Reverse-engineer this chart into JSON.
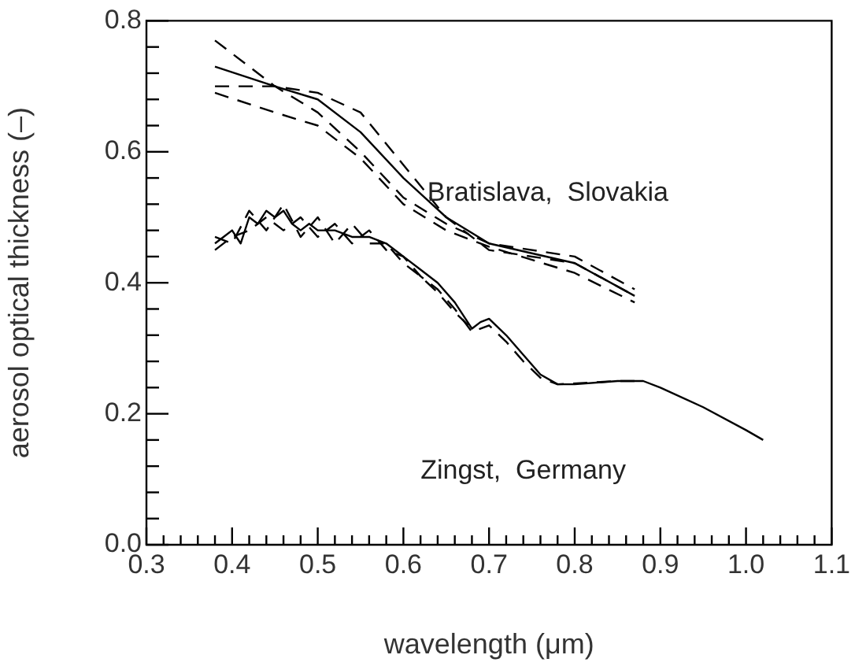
{
  "chart_data": {
    "type": "line",
    "xlabel": "wavelength (μm)",
    "ylabel": "aerosol optical thickness (–)",
    "xlim": [
      0.3,
      1.1
    ],
    "ylim": [
      0,
      0.8
    ],
    "xticks": [
      0.3,
      {
        "value": 0.32,
        "label": null
      },
      {
        "value": 0.34,
        "label": null
      },
      {
        "value": 0.36,
        "label": null
      },
      {
        "value": 0.38,
        "label": null
      },
      0.4,
      {
        "value": 0.42,
        "label": null
      },
      {
        "value": 0.44,
        "label": null
      },
      {
        "value": 0.46,
        "label": null
      },
      {
        "value": 0.48,
        "label": null
      },
      0.5,
      {
        "value": 0.52,
        "label": null
      },
      {
        "value": 0.54,
        "label": null
      },
      {
        "value": 0.56,
        "label": null
      },
      {
        "value": 0.58,
        "label": null
      },
      0.6,
      {
        "value": 0.62,
        "label": null
      },
      {
        "value": 0.64,
        "label": null
      },
      {
        "value": 0.66,
        "label": null
      },
      {
        "value": 0.68,
        "label": null
      },
      0.7,
      {
        "value": 0.72,
        "label": null
      },
      {
        "value": 0.74,
        "label": null
      },
      {
        "value": 0.76,
        "label": null
      },
      {
        "value": 0.78,
        "label": null
      },
      0.8,
      {
        "value": 0.82,
        "label": null
      },
      {
        "value": 0.84,
        "label": null
      },
      {
        "value": 0.86,
        "label": null
      },
      {
        "value": 0.88,
        "label": null
      },
      0.9,
      {
        "value": 0.92,
        "label": null
      },
      {
        "value": 0.94,
        "label": null
      },
      {
        "value": 0.96,
        "label": null
      },
      {
        "value": 0.98,
        "label": null
      },
      {
        "value": 1.0,
        "label": "1.0"
      },
      {
        "value": 1.02,
        "label": null
      },
      {
        "value": 1.04,
        "label": null
      },
      {
        "value": 1.06,
        "label": null
      },
      {
        "value": 1.08,
        "label": null
      },
      1.1
    ],
    "yticks": [
      {
        "value": 0,
        "label": "0.0"
      },
      {
        "value": 0.04,
        "label": null
      },
      {
        "value": 0.08,
        "label": null
      },
      {
        "value": 0.12,
        "label": null
      },
      {
        "value": 0.16,
        "label": null
      },
      0.2,
      {
        "value": 0.24,
        "label": null
      },
      {
        "value": 0.28,
        "label": null
      },
      {
        "value": 0.32,
        "label": null
      },
      {
        "value": 0.36,
        "label": null
      },
      0.4,
      {
        "value": 0.44,
        "label": null
      },
      {
        "value": 0.48,
        "label": null
      },
      {
        "value": 0.52,
        "label": null
      },
      {
        "value": 0.56,
        "label": null
      },
      0.6,
      {
        "value": 0.64,
        "label": null
      },
      {
        "value": 0.68,
        "label": null
      },
      {
        "value": 0.72,
        "label": null
      },
      {
        "value": 0.76,
        "label": null
      },
      0.8
    ],
    "grid": false,
    "legend": false,
    "marker": "none",
    "series": [
      {
        "color": "#000000",
        "line_style": "solid",
        "x": [
          0.38,
          0.45,
          0.5,
          0.55,
          0.6,
          0.65,
          0.7,
          0.8,
          0.87
        ],
        "values": [
          0.73,
          0.7,
          0.68,
          0.63,
          0.56,
          0.5,
          0.46,
          0.43,
          0.38
        ]
      },
      {
        "color": "#000000",
        "line_style": "dashed",
        "x": [
          0.38,
          0.45,
          0.5,
          0.55,
          0.6,
          0.65,
          0.7,
          0.8,
          0.87
        ],
        "values": [
          0.77,
          0.7,
          0.66,
          0.6,
          0.53,
          0.49,
          0.46,
          0.44,
          0.39
        ]
      },
      {
        "color": "#000000",
        "line_style": "dashed",
        "x": [
          0.38,
          0.45,
          0.5,
          0.55,
          0.6,
          0.65,
          0.7,
          0.8,
          0.87
        ],
        "values": [
          0.7,
          0.7,
          0.69,
          0.66,
          0.58,
          0.5,
          0.45,
          0.43,
          0.38
        ]
      },
      {
        "color": "#000000",
        "line_style": "dashed",
        "x": [
          0.38,
          0.45,
          0.5,
          0.55,
          0.6,
          0.65,
          0.7,
          0.8,
          0.87
        ],
        "values": [
          0.69,
          0.66,
          0.64,
          0.59,
          0.52,
          0.48,
          0.455,
          0.415,
          0.37
        ]
      },
      {
        "color": "#000000",
        "line_style": "solid",
        "x": [
          0.38,
          0.39,
          0.4,
          0.41,
          0.42,
          0.43,
          0.44,
          0.45,
          0.46,
          0.47,
          0.48,
          0.49,
          0.5,
          0.52,
          0.54,
          0.56,
          0.58,
          0.6,
          0.62,
          0.64,
          0.66,
          0.68,
          0.69,
          0.7,
          0.72,
          0.74,
          0.76,
          0.78,
          0.8,
          0.85,
          0.88,
          0.9,
          0.95,
          1.0,
          1.02
        ],
        "values": [
          0.46,
          0.47,
          0.48,
          0.46,
          0.5,
          0.49,
          0.51,
          0.5,
          0.51,
          0.49,
          0.48,
          0.49,
          0.48,
          0.48,
          0.47,
          0.47,
          0.46,
          0.44,
          0.42,
          0.4,
          0.37,
          0.33,
          0.34,
          0.345,
          0.32,
          0.29,
          0.26,
          0.245,
          0.245,
          0.25,
          0.25,
          0.24,
          0.21,
          0.175,
          0.16
        ]
      },
      {
        "color": "#000000",
        "line_style": "dashed",
        "x": [
          0.38,
          0.4,
          0.42,
          0.44,
          0.46,
          0.48,
          0.5,
          0.52,
          0.54,
          0.56,
          0.58,
          0.6,
          0.62,
          0.64,
          0.66,
          0.68,
          0.7,
          0.72,
          0.74,
          0.76,
          0.78,
          0.85,
          0.88
        ],
        "values": [
          0.45,
          0.47,
          0.48,
          0.5,
          0.48,
          0.5,
          0.47,
          0.49,
          0.46,
          0.48,
          0.45,
          0.44,
          0.41,
          0.39,
          0.36,
          0.325,
          0.335,
          0.31,
          0.28,
          0.255,
          0.245,
          0.25,
          0.25
        ]
      },
      {
        "color": "#000000",
        "line_style": "dashed",
        "x": [
          0.38,
          0.4,
          0.42,
          0.44,
          0.46,
          0.48,
          0.5,
          0.52,
          0.54,
          0.56,
          0.58,
          0.6,
          0.62,
          0.64,
          0.66,
          0.68
        ],
        "values": [
          0.47,
          0.46,
          0.51,
          0.48,
          0.52,
          0.47,
          0.5,
          0.46,
          0.49,
          0.46,
          0.46,
          0.43,
          0.41,
          0.385,
          0.355,
          0.33
        ]
      }
    ],
    "annotations": [
      "Bratislava,  Slovakia",
      "Zingst,  Germany"
    ]
  }
}
